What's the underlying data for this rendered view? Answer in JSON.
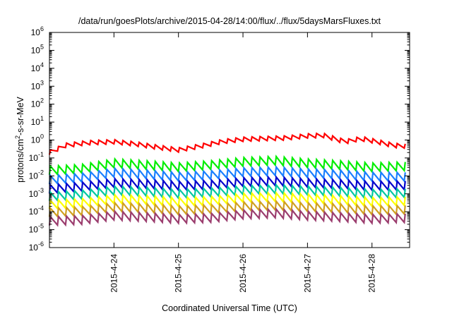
{
  "chart_data": {
    "type": "line",
    "title": "/data/run/goesPlots/archive/2015-04-28/14:00/flux/../flux/5daysMarsFluxes.txt",
    "xlabel": "Coordinated Universal Time (UTC)",
    "ylabel": {
      "base": "protons/cm",
      "sup": "2",
      "rest": "-s-sr-MeV"
    },
    "x_scale": "time",
    "x_range": [
      "2015-04-23T00:00",
      "2015-04-28T14:00"
    ],
    "x_ticks": [
      "2015-4-24",
      "2015-4-25",
      "2015-4-26",
      "2015-4-27",
      "2015-4-28"
    ],
    "y_scale": "log",
    "y_ticks": [
      {
        "base": "10",
        "exp": "6"
      },
      {
        "base": "10",
        "exp": "5"
      },
      {
        "base": "10",
        "exp": "4"
      },
      {
        "base": "10",
        "exp": "3"
      },
      {
        "base": "10",
        "exp": "2"
      },
      {
        "base": "10",
        "exp": "1"
      },
      {
        "base": "10",
        "exp": "0"
      },
      {
        "base": "10",
        "exp": "-1"
      },
      {
        "base": "10",
        "exp": "-2"
      },
      {
        "base": "10",
        "exp": "-3"
      },
      {
        "base": "10",
        "exp": "-4"
      },
      {
        "base": "10",
        "exp": "-5"
      },
      {
        "base": "10",
        "exp": "-6"
      }
    ],
    "ylim": [
      1e-06,
      1000000.0
    ],
    "grid": false,
    "legend": "none",
    "sawtooth_period_hours": 3,
    "series": [
      {
        "color": "#ff0000",
        "profile": [
          [
            "2015-04-23T00:00",
            0.2
          ],
          [
            "2015-04-23T06:00",
            0.5
          ],
          [
            "2015-04-23T14:00",
            0.7
          ],
          [
            "2015-04-24T00:00",
            0.8
          ],
          [
            "2015-04-24T08:00",
            0.6
          ],
          [
            "2015-04-24T16:00",
            0.4
          ],
          [
            "2015-04-25T00:00",
            0.28
          ],
          [
            "2015-04-25T08:00",
            0.45
          ],
          [
            "2015-04-25T16:00",
            0.8
          ],
          [
            "2015-04-26T00:00",
            1.1
          ],
          [
            "2015-04-26T08:00",
            1.2
          ],
          [
            "2015-04-26T16:00",
            1.3
          ],
          [
            "2015-04-27T00:00",
            1.7
          ],
          [
            "2015-04-27T06:00",
            1.8
          ],
          [
            "2015-04-27T14:00",
            0.8
          ],
          [
            "2015-04-27T20:00",
            1.2
          ],
          [
            "2015-04-28T02:00",
            0.8
          ],
          [
            "2015-04-28T08:00",
            0.5
          ],
          [
            "2015-04-28T14:00",
            0.45
          ]
        ]
      },
      {
        "color": "#00ee00",
        "profile": [
          [
            "2015-04-23T00:00",
            0.02
          ],
          [
            "2015-04-23T12:00",
            0.025
          ],
          [
            "2015-04-24T00:00",
            0.05
          ],
          [
            "2015-04-24T12:00",
            0.04
          ],
          [
            "2015-04-25T00:00",
            0.03
          ],
          [
            "2015-04-25T12:00",
            0.04
          ],
          [
            "2015-04-26T00:00",
            0.06
          ],
          [
            "2015-04-26T12:00",
            0.07
          ],
          [
            "2015-04-27T00:00",
            0.05
          ],
          [
            "2015-04-27T12:00",
            0.04
          ],
          [
            "2015-04-28T00:00",
            0.03
          ],
          [
            "2015-04-28T14:00",
            0.035
          ]
        ]
      },
      {
        "color": "#1a7fff",
        "profile": [
          [
            "2015-04-23T00:00",
            0.006
          ],
          [
            "2015-04-23T12:00",
            0.008
          ],
          [
            "2015-04-24T00:00",
            0.015
          ],
          [
            "2015-04-24T12:00",
            0.012
          ],
          [
            "2015-04-25T00:00",
            0.009
          ],
          [
            "2015-04-25T12:00",
            0.011
          ],
          [
            "2015-04-26T00:00",
            0.016
          ],
          [
            "2015-04-26T12:00",
            0.018
          ],
          [
            "2015-04-27T00:00",
            0.014
          ],
          [
            "2015-04-27T12:00",
            0.012
          ],
          [
            "2015-04-28T00:00",
            0.009
          ],
          [
            "2015-04-28T14:00",
            0.009
          ]
        ]
      },
      {
        "color": "#0000cc",
        "profile": [
          [
            "2015-04-23T00:00",
            0.0018
          ],
          [
            "2015-04-23T12:00",
            0.0025
          ],
          [
            "2015-04-24T00:00",
            0.004
          ],
          [
            "2015-04-24T12:00",
            0.0035
          ],
          [
            "2015-04-25T00:00",
            0.0028
          ],
          [
            "2015-04-25T12:00",
            0.0032
          ],
          [
            "2015-04-26T00:00",
            0.0045
          ],
          [
            "2015-04-26T12:00",
            0.005
          ],
          [
            "2015-04-27T00:00",
            0.004
          ],
          [
            "2015-04-27T12:00",
            0.0035
          ],
          [
            "2015-04-28T00:00",
            0.0028
          ],
          [
            "2015-04-28T14:00",
            0.003
          ]
        ]
      },
      {
        "color": "#00c8a0",
        "profile": [
          [
            "2015-04-23T00:00",
            0.0007
          ],
          [
            "2015-04-23T12:00",
            0.0009
          ],
          [
            "2015-04-24T00:00",
            0.0015
          ],
          [
            "2015-04-24T12:00",
            0.0013
          ],
          [
            "2015-04-25T00:00",
            0.001
          ],
          [
            "2015-04-25T12:00",
            0.0012
          ],
          [
            "2015-04-26T00:00",
            0.0016
          ],
          [
            "2015-04-26T12:00",
            0.0018
          ],
          [
            "2015-04-27T00:00",
            0.0015
          ],
          [
            "2015-04-27T12:00",
            0.0013
          ],
          [
            "2015-04-28T00:00",
            0.001
          ],
          [
            "2015-04-28T14:00",
            0.0011
          ]
        ]
      },
      {
        "color": "#ffff00",
        "profile": [
          [
            "2015-04-23T00:00",
            0.00025
          ],
          [
            "2015-04-23T12:00",
            0.0003
          ],
          [
            "2015-04-24T00:00",
            0.0005
          ],
          [
            "2015-04-24T12:00",
            0.00045
          ],
          [
            "2015-04-25T00:00",
            0.00035
          ],
          [
            "2015-04-25T12:00",
            0.0004
          ],
          [
            "2015-04-26T00:00",
            0.0006
          ],
          [
            "2015-04-26T12:00",
            0.00065
          ],
          [
            "2015-04-27T00:00",
            0.00055
          ],
          [
            "2015-04-27T12:00",
            0.00045
          ],
          [
            "2015-04-28T00:00",
            0.00035
          ],
          [
            "2015-04-28T14:00",
            0.0004
          ]
        ]
      },
      {
        "color": "#d0a020",
        "profile": [
          [
            "2015-04-23T00:00",
            9e-05
          ],
          [
            "2015-04-23T12:00",
            0.00011
          ],
          [
            "2015-04-24T00:00",
            0.00018
          ],
          [
            "2015-04-24T12:00",
            0.00016
          ],
          [
            "2015-04-25T00:00",
            0.00012
          ],
          [
            "2015-04-25T12:00",
            0.00014
          ],
          [
            "2015-04-26T00:00",
            0.0002
          ],
          [
            "2015-04-26T12:00",
            0.00022
          ],
          [
            "2015-04-27T00:00",
            0.00018
          ],
          [
            "2015-04-27T12:00",
            0.00016
          ],
          [
            "2015-04-28T00:00",
            0.00012
          ],
          [
            "2015-04-28T14:00",
            0.00013
          ]
        ]
      },
      {
        "color": "#9b3d6e",
        "profile": [
          [
            "2015-04-23T00:00",
            3e-05
          ],
          [
            "2015-04-23T12:00",
            3.5e-05
          ],
          [
            "2015-04-24T00:00",
            6e-05
          ],
          [
            "2015-04-24T12:00",
            5e-05
          ],
          [
            "2015-04-25T00:00",
            4e-05
          ],
          [
            "2015-04-25T12:00",
            4.5e-05
          ],
          [
            "2015-04-26T00:00",
            7e-05
          ],
          [
            "2015-04-26T12:00",
            8e-05
          ],
          [
            "2015-04-27T00:00",
            6e-05
          ],
          [
            "2015-04-27T12:00",
            5e-05
          ],
          [
            "2015-04-28T00:00",
            4e-05
          ],
          [
            "2015-04-28T14:00",
            4.5e-05
          ]
        ]
      }
    ]
  }
}
